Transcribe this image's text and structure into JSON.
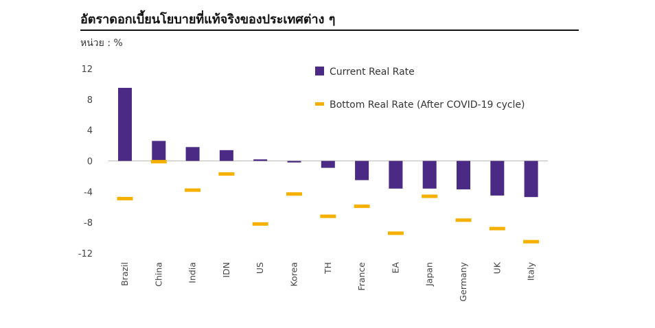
{
  "title": "อัตราดอกเบี้ยนโยบายที่แท้จริงของประเทศต่าง ๆ",
  "unit_label": "หน่วย : %",
  "colors": {
    "current": "#4b2a85",
    "bottom": "#f5b000",
    "axis": "#bbbbbb",
    "title_rule": "#111111"
  },
  "chart_data": {
    "type": "bar",
    "categories": [
      "Brazil",
      "China",
      "India",
      "IDN",
      "US",
      "Korea",
      "TH",
      "France",
      "EA",
      "Japan",
      "Germany",
      "UK",
      "Italy"
    ],
    "series": [
      {
        "name": "Current Real Rate",
        "kind": "bar",
        "values": [
          9.5,
          2.6,
          1.8,
          1.4,
          0.2,
          -0.2,
          -0.9,
          -2.5,
          -3.6,
          -3.6,
          -3.7,
          -4.5,
          -4.7
        ]
      },
      {
        "name": "Bottom Real Rate (After COVID-19 cycle)",
        "kind": "marker",
        "values": [
          -4.9,
          -0.1,
          -3.8,
          -1.7,
          -8.2,
          -4.3,
          -7.2,
          -5.9,
          -9.4,
          -4.6,
          -7.7,
          -8.8,
          -10.5
        ]
      }
    ],
    "y_ticks": [
      "12",
      "8",
      "4",
      "0",
      "-4",
      "-8",
      "-12"
    ],
    "ylim": [
      -12,
      12
    ],
    "legend_position": "top-right"
  }
}
